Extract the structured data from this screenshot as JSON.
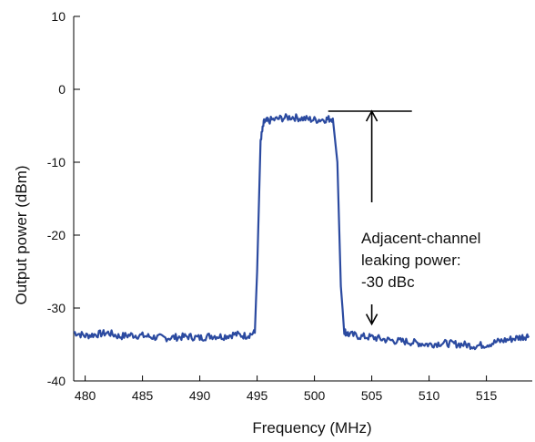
{
  "chart_data": {
    "type": "line",
    "title": "",
    "xlabel": "Frequency (MHz)",
    "ylabel": "Output power (dBm)",
    "xlim": [
      479,
      519
    ],
    "ylim": [
      -40,
      10
    ],
    "x_ticks": [
      480,
      485,
      490,
      495,
      500,
      505,
      510,
      515
    ],
    "y_ticks": [
      10,
      0,
      -10,
      -20,
      -30,
      -40
    ],
    "grid": false,
    "series": [
      {
        "color": "#2b4aa0",
        "x": [
          479,
          480,
          481,
          482,
          483,
          484,
          485,
          486,
          487,
          488,
          489,
          490,
          491,
          492,
          493,
          494,
          494.8,
          495,
          495.3,
          495.6,
          496,
          497,
          498,
          499,
          500,
          501,
          501.6,
          502,
          502.3,
          502.6,
          503,
          504,
          505,
          506,
          507,
          508,
          509,
          510,
          511,
          512,
          513,
          514,
          515,
          516,
          517,
          518,
          518.7
        ],
        "y": [
          -33.3,
          -33.8,
          -33.6,
          -33.4,
          -33.9,
          -33.7,
          -33.8,
          -34.0,
          -34.1,
          -34.0,
          -33.9,
          -34.1,
          -33.8,
          -33.9,
          -33.6,
          -33.8,
          -33.4,
          -25.0,
          -7.0,
          -4.5,
          -4.3,
          -4.0,
          -3.8,
          -4.0,
          -4.2,
          -4.1,
          -4.0,
          -10.0,
          -27.0,
          -33.2,
          -33.6,
          -33.9,
          -34.0,
          -34.3,
          -34.5,
          -34.6,
          -34.8,
          -35.0,
          -34.8,
          -34.9,
          -35.0,
          -35.2,
          -35.0,
          -34.6,
          -34.3,
          -34.0,
          -33.8
        ]
      }
    ],
    "annotations": {
      "text_lines": [
        "Adjacent-channel",
        "leaking power:",
        "-30 dBc"
      ],
      "reference_level_dbm": -3,
      "arrow_x_mhz": 505,
      "upper_arrow_dbm": [
        -15.5,
        -3.0
      ],
      "lower_arrow_dbm": [
        -29.5,
        -32.2
      ],
      "reference_line_x_mhz": [
        501.2,
        508.5
      ]
    }
  }
}
